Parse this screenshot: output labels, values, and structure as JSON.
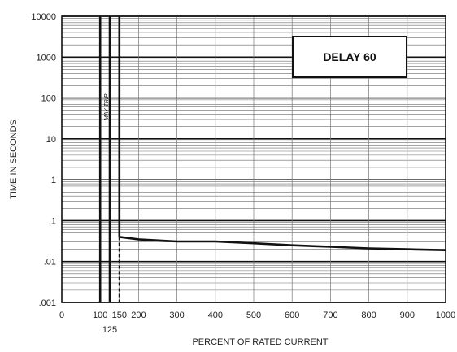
{
  "chart_data": {
    "type": "line",
    "title": "DELAY 60",
    "xlabel": "PERCENT OF RATED CURRENT",
    "ylabel": "TIME IN SECONDS",
    "xlim": [
      0,
      1000
    ],
    "ylim": [
      0.001,
      10000
    ],
    "yscale": "log",
    "grid": true,
    "x_ticks": [
      0,
      100,
      125,
      150,
      200,
      300,
      400,
      500,
      600,
      700,
      800,
      900,
      1000
    ],
    "x_tick_labels": [
      "0",
      "100",
      "125",
      "150",
      "200",
      "300",
      "400",
      "500",
      "600",
      "700",
      "800",
      "900",
      "1000"
    ],
    "y_ticks": [
      0.001,
      0.01,
      0.1,
      1,
      10,
      100,
      1000,
      10000
    ],
    "y_tick_labels": [
      ".001",
      ".01",
      ".1",
      "1",
      "10",
      "100",
      "1000",
      "10000"
    ],
    "vertical_lines": [
      100,
      125,
      150
    ],
    "dashed_line": {
      "x": 150,
      "y_from": 0.001,
      "y_to": 0.04
    },
    "annotation": "MAY TRIP",
    "series": [
      {
        "x": [
          150,
          200,
          300,
          400,
          500,
          600,
          700,
          800,
          900,
          1000
        ],
        "values": [
          0.04,
          0.035,
          0.031,
          0.031,
          0.028,
          0.025,
          0.023,
          0.021,
          0.02,
          0.019
        ]
      }
    ]
  }
}
